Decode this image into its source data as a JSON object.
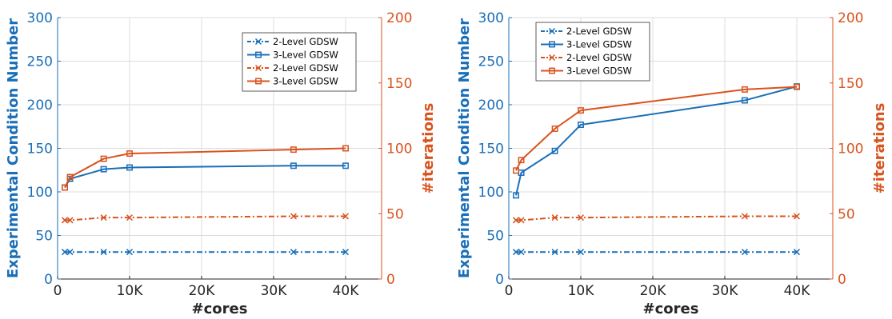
{
  "colors": {
    "blue": "#1a6fb8",
    "orange": "#d9531e",
    "axis": "#262626",
    "grid": "#dcdcdc"
  },
  "chart_data": [
    {
      "type": "line",
      "xlabel": "#cores",
      "ylabel_left": "Experimental Condition Number",
      "ylabel_right": "#iterations",
      "xlim": [
        0,
        45000
      ],
      "ylim_left": [
        0,
        300
      ],
      "ylim_right": [
        0,
        200
      ],
      "x_ticks": [
        0,
        10000,
        20000,
        30000,
        40000
      ],
      "x_tick_labels": [
        "0",
        "10K",
        "20K",
        "30K",
        "40K"
      ],
      "y_left_ticks": [
        0,
        50,
        100,
        150,
        200,
        250,
        300
      ],
      "y_left_tick_labels": [
        "0",
        "50",
        "100",
        "150",
        "200",
        "250",
        "300"
      ],
      "y_right_ticks": [
        0,
        50,
        100,
        150,
        200
      ],
      "y_right_tick_labels": [
        "0",
        "50",
        "100",
        "150",
        "200"
      ],
      "grid": true,
      "legend_position": "top-right",
      "series": [
        {
          "name": "2-Level GDSW",
          "axis": "left",
          "color": "blue",
          "style": "dashdot",
          "marker": "x",
          "x": [
            1000,
            1728,
            6400,
            10000,
            32768,
            40000
          ],
          "y": [
            31,
            31,
            31,
            31,
            31,
            31
          ]
        },
        {
          "name": "3-Level GDSW",
          "axis": "left",
          "color": "blue",
          "style": "solid",
          "marker": "square",
          "x": [
            1000,
            1728,
            6400,
            10000,
            32768,
            40000
          ],
          "y": [
            105,
            115,
            126,
            128,
            130,
            130
          ]
        },
        {
          "name": "2-Level GDSW",
          "axis": "right",
          "color": "orange",
          "style": "dashdot",
          "marker": "x",
          "x": [
            1000,
            1728,
            6400,
            10000,
            32768,
            40000
          ],
          "y": [
            45,
            45,
            47,
            47,
            48,
            48
          ]
        },
        {
          "name": "3-Level GDSW",
          "axis": "right",
          "color": "orange",
          "style": "solid",
          "marker": "square",
          "x": [
            1000,
            1728,
            6400,
            10000,
            32768,
            40000
          ],
          "y": [
            70,
            78,
            92,
            96,
            99,
            100
          ]
        }
      ]
    },
    {
      "type": "line",
      "xlabel": "#cores",
      "ylabel_left": "Experimental Condition Number",
      "ylabel_right": "#iterations",
      "xlim": [
        0,
        45000
      ],
      "ylim_left": [
        0,
        300
      ],
      "ylim_right": [
        0,
        200
      ],
      "x_ticks": [
        0,
        10000,
        20000,
        30000,
        40000
      ],
      "x_tick_labels": [
        "0",
        "10K",
        "20K",
        "30K",
        "40K"
      ],
      "y_left_ticks": [
        0,
        50,
        100,
        150,
        200,
        250,
        300
      ],
      "y_left_tick_labels": [
        "0",
        "50",
        "100",
        "150",
        "200",
        "250",
        "300"
      ],
      "y_right_ticks": [
        0,
        50,
        100,
        150,
        200
      ],
      "y_right_tick_labels": [
        "0",
        "50",
        "100",
        "150",
        "200"
      ],
      "grid": true,
      "legend_position": "top-left",
      "series": [
        {
          "name": "2-Level GDSW",
          "axis": "left",
          "color": "blue",
          "style": "dashdot",
          "marker": "x",
          "x": [
            1000,
            1728,
            6400,
            10000,
            32768,
            40000
          ],
          "y": [
            31,
            31,
            31,
            31,
            31,
            31
          ]
        },
        {
          "name": "3-Level GDSW",
          "axis": "left",
          "color": "blue",
          "style": "solid",
          "marker": "square",
          "x": [
            1000,
            1728,
            6400,
            10000,
            32768,
            40000
          ],
          "y": [
            96,
            122,
            147,
            177,
            205,
            221
          ]
        },
        {
          "name": "2-Level GDSW",
          "axis": "right",
          "color": "orange",
          "style": "dashdot",
          "marker": "x",
          "x": [
            1000,
            1728,
            6400,
            10000,
            32768,
            40000
          ],
          "y": [
            45,
            45,
            47,
            47,
            48,
            48
          ]
        },
        {
          "name": "3-Level GDSW",
          "axis": "right",
          "color": "orange",
          "style": "solid",
          "marker": "square",
          "x": [
            1000,
            1728,
            6400,
            10000,
            32768,
            40000
          ],
          "y": [
            83,
            91,
            115,
            129,
            145,
            147
          ]
        }
      ]
    }
  ]
}
